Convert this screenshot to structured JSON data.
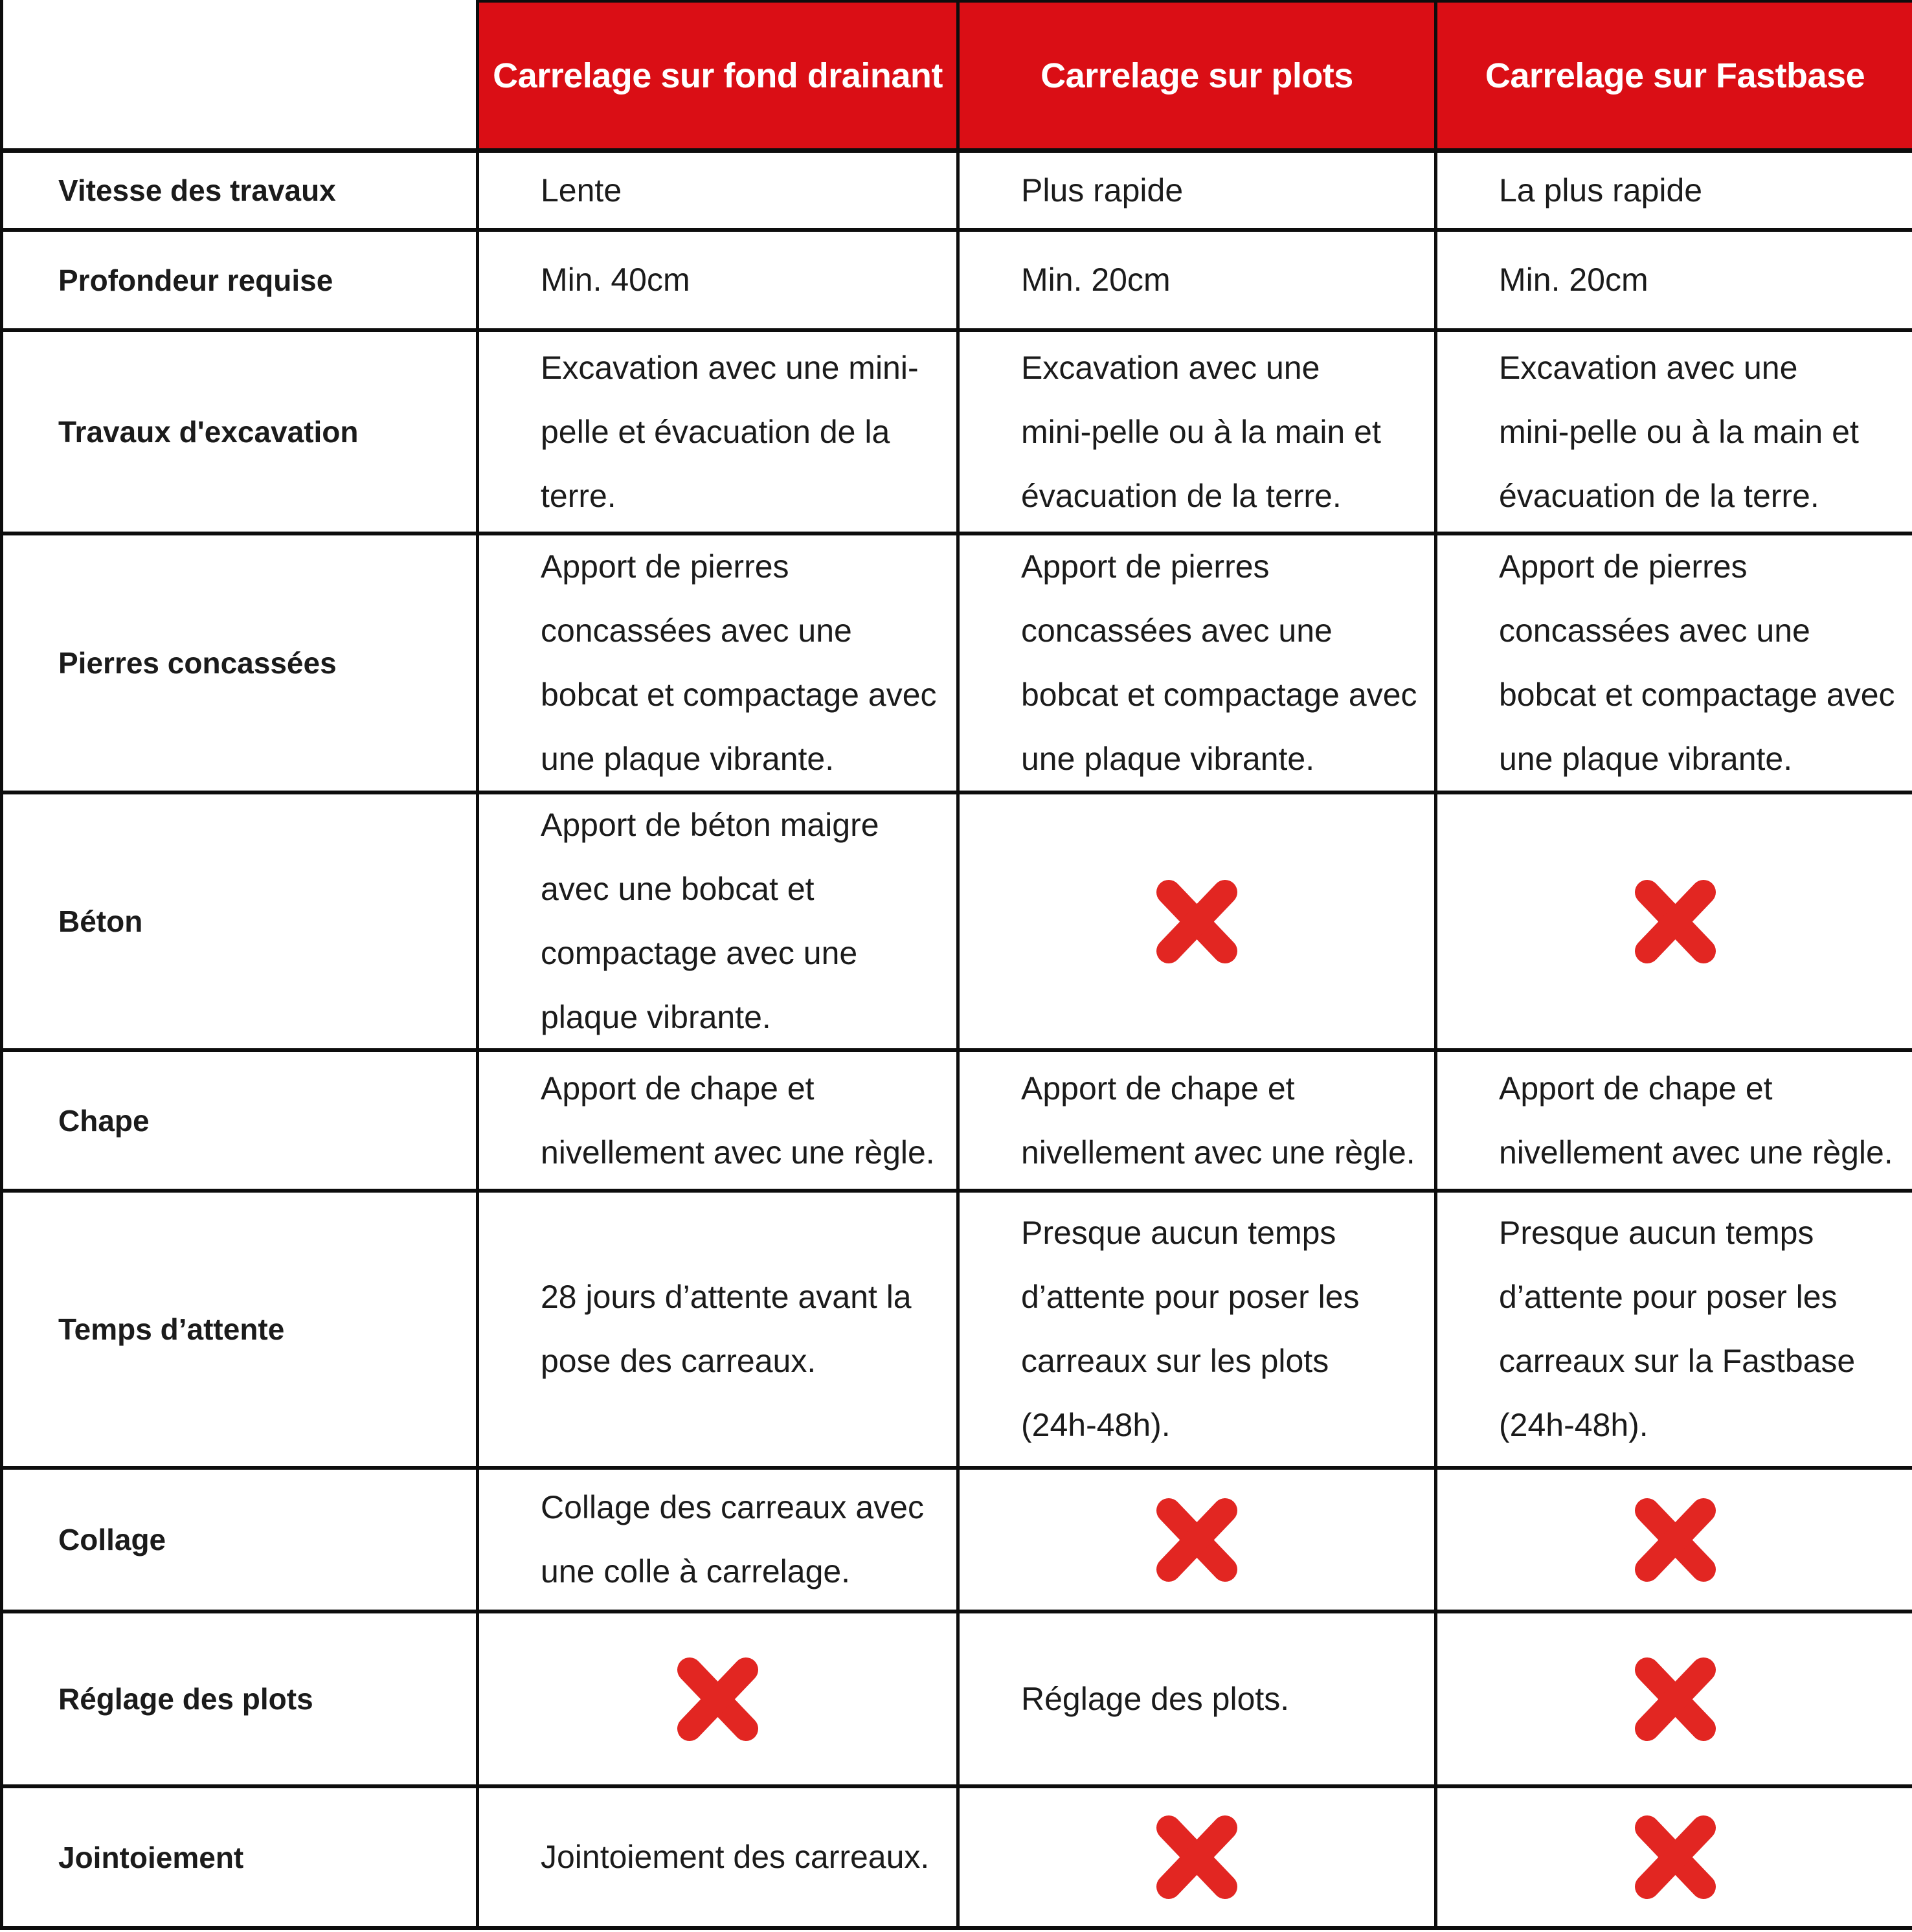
{
  "colors": {
    "header_red": "#da0e15",
    "x_red": "#e22622",
    "border_black": "#0d0d0d",
    "text_black": "#1b1b1b"
  },
  "table": {
    "corner_label": "",
    "columns": [
      "Carrelage sur fond drainant",
      "Carrelage sur plots",
      "Carrelage sur Fastbase"
    ],
    "rows": [
      {
        "label": "Vitesse des travaux",
        "cells": [
          {
            "type": "text",
            "text": "Lente"
          },
          {
            "type": "text",
            "text": "Plus rapide"
          },
          {
            "type": "text",
            "text": "La plus rapide"
          }
        ]
      },
      {
        "label": "Profondeur requise",
        "cells": [
          {
            "type": "text",
            "text": "Min. 40cm"
          },
          {
            "type": "text",
            "text": "Min. 20cm"
          },
          {
            "type": "text",
            "text": "Min. 20cm"
          }
        ]
      },
      {
        "label": "Travaux d'excavation",
        "cells": [
          {
            "type": "text",
            "text": "Excavation avec une mini-\npelle et évacuation de la\nterre."
          },
          {
            "type": "text",
            "text": "Excavation avec une\nmini-pelle ou à la main et\névacuation de la terre."
          },
          {
            "type": "text",
            "text": "Excavation avec une\nmini-pelle ou à la main et\névacuation de la terre."
          }
        ]
      },
      {
        "label": "Pierres concassées",
        "cells": [
          {
            "type": "text",
            "text": "Apport de pierres\nconcassées avec une\nbobcat et compactage avec\nune plaque vibrante."
          },
          {
            "type": "text",
            "text": "Apport de pierres\nconcassées avec une\nbobcat et compactage avec\nune plaque vibrante."
          },
          {
            "type": "text",
            "text": "Apport de pierres\nconcassées avec une\nbobcat et compactage avec\nune plaque vibrante."
          }
        ]
      },
      {
        "label": "Béton",
        "cells": [
          {
            "type": "text",
            "text": "Apport de béton maigre\navec une bobcat et\ncompactage avec une\nplaque vibrante."
          },
          {
            "type": "x"
          },
          {
            "type": "x"
          }
        ]
      },
      {
        "label": "Chape",
        "cells": [
          {
            "type": "text",
            "text": "Apport de chape et\nnivellement avec une règle."
          },
          {
            "type": "text",
            "text": "Apport de chape et\nnivellement avec une règle."
          },
          {
            "type": "text",
            "text": "Apport de chape et\nnivellement avec une règle."
          }
        ]
      },
      {
        "label": "Temps d’attente",
        "cells": [
          {
            "type": "text",
            "text": "28 jours d’attente avant la\npose des carreaux."
          },
          {
            "type": "text",
            "text": "Presque aucun temps\nd’attente pour poser les\ncarreaux sur les plots\n(24h-48h)."
          },
          {
            "type": "text",
            "text": "Presque aucun temps\nd’attente pour poser les\ncarreaux sur la Fastbase\n(24h-48h)."
          }
        ]
      },
      {
        "label": "Collage",
        "cells": [
          {
            "type": "text",
            "text": "Collage des carreaux avec\nune colle à carrelage."
          },
          {
            "type": "x"
          },
          {
            "type": "x"
          }
        ]
      },
      {
        "label": "Réglage des plots",
        "cells": [
          {
            "type": "x"
          },
          {
            "type": "text",
            "text": "Réglage des plots."
          },
          {
            "type": "x"
          }
        ]
      },
      {
        "label": "Jointoiement",
        "cells": [
          {
            "type": "text",
            "text": "Jointoiement des carreaux."
          },
          {
            "type": "x"
          },
          {
            "type": "x"
          }
        ]
      }
    ]
  }
}
